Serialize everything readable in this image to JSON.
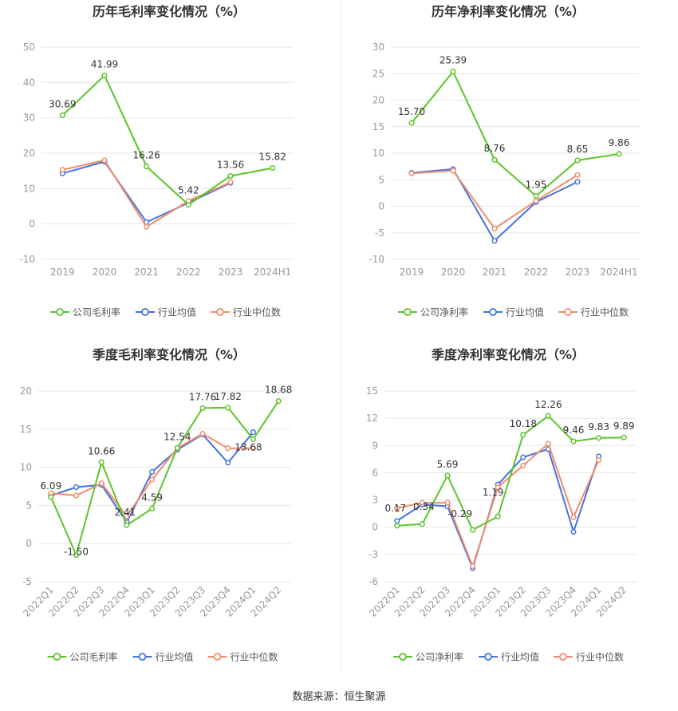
{
  "footer": {
    "source": "数据来源：恒生聚源"
  },
  "colors": {
    "company": "#5cc42a",
    "avg": "#4472e0",
    "median": "#f08c6a",
    "grid": "#e6e6e6",
    "axis_text": "#999999"
  },
  "chart_data": [
    {
      "type": "line",
      "title": "历年毛利率变化情况（%）",
      "categories": [
        "2019",
        "2020",
        "2021",
        "2022",
        "2023",
        "2024H1"
      ],
      "ylim": [
        -10,
        50
      ],
      "yticks": [
        -10,
        0,
        10,
        20,
        30,
        40,
        50
      ],
      "rotate_x": false,
      "grid": true,
      "legend_position": "bottom",
      "series": [
        {
          "name": "公司毛利率",
          "color": "#5cc42a",
          "values": [
            30.69,
            41.99,
            16.26,
            5.42,
            13.56,
            15.82
          ],
          "labels": [
            "30.69",
            "41.99",
            "16.26",
            "5.42",
            "13.56",
            "15.82"
          ]
        },
        {
          "name": "行业均值",
          "color": "#4472e0",
          "values": [
            14.3,
            17.6,
            0.5,
            6.0,
            11.6,
            null
          ]
        },
        {
          "name": "行业中位数",
          "color": "#f08c6a",
          "values": [
            15.3,
            18.0,
            -0.8,
            6.5,
            11.8,
            null
          ]
        }
      ]
    },
    {
      "type": "line",
      "title": "历年净利率变化情况（%）",
      "categories": [
        "2019",
        "2020",
        "2021",
        "2022",
        "2023",
        "2024H1"
      ],
      "ylim": [
        -10,
        30
      ],
      "yticks": [
        -10,
        -5,
        0,
        5,
        10,
        15,
        20,
        25,
        30
      ],
      "rotate_x": false,
      "grid": true,
      "legend_position": "bottom",
      "series": [
        {
          "name": "公司净利率",
          "color": "#5cc42a",
          "values": [
            15.7,
            25.39,
            8.76,
            1.95,
            8.65,
            9.86
          ],
          "labels": [
            "15.70",
            "25.39",
            "8.76",
            "1.95",
            "8.65",
            "9.86"
          ]
        },
        {
          "name": "行业均值",
          "color": "#4472e0",
          "values": [
            6.3,
            7.0,
            -6.5,
            0.8,
            4.6,
            null
          ]
        },
        {
          "name": "行业中位数",
          "color": "#f08c6a",
          "values": [
            6.2,
            6.7,
            -4.2,
            1.0,
            5.9,
            null
          ]
        }
      ]
    },
    {
      "type": "line",
      "title": "季度毛利率变化情况（%）",
      "categories": [
        "2022Q1",
        "2022Q2",
        "2022Q3",
        "2022Q4",
        "2023Q1",
        "2023Q2",
        "2023Q3",
        "2023Q4",
        "2024Q1",
        "2024Q2"
      ],
      "ylim": [
        -5,
        20
      ],
      "yticks": [
        -5,
        0,
        5,
        10,
        15,
        20
      ],
      "rotate_x": true,
      "grid": true,
      "legend_position": "bottom",
      "series": [
        {
          "name": "公司毛利率",
          "color": "#5cc42a",
          "values": [
            6.09,
            -1.5,
            10.66,
            2.41,
            4.59,
            12.54,
            17.76,
            17.82,
            13.68,
            18.68
          ],
          "labels": [
            "6.09",
            "-1.50",
            "10.66",
            "2.41",
            "4.59",
            "12.54",
            "17.76",
            "17.82",
            "13.68",
            "18.68"
          ]
        },
        {
          "name": "行业均值",
          "color": "#4472e0",
          "values": [
            6.3,
            7.4,
            7.7,
            2.8,
            9.4,
            12.3,
            14.3,
            10.6,
            14.6,
            null
          ]
        },
        {
          "name": "行业中位数",
          "color": "#f08c6a",
          "values": [
            6.6,
            6.3,
            7.9,
            3.6,
            8.4,
            12.5,
            14.4,
            12.5,
            12.5,
            null
          ]
        }
      ]
    },
    {
      "type": "line",
      "title": "季度净利率变化情况（%）",
      "categories": [
        "2022Q1",
        "2022Q2",
        "2022Q3",
        "2022Q4",
        "2023Q1",
        "2023Q2",
        "2023Q3",
        "2023Q4",
        "2024Q1",
        "2024Q2"
      ],
      "ylim": [
        -6,
        15
      ],
      "yticks": [
        -6,
        -3,
        0,
        3,
        6,
        9,
        12,
        15
      ],
      "rotate_x": true,
      "grid": true,
      "legend_position": "bottom",
      "series": [
        {
          "name": "公司净利率",
          "color": "#5cc42a",
          "values": [
            0.17,
            0.34,
            5.69,
            -0.29,
            1.19,
            10.18,
            12.26,
            9.46,
            9.83,
            9.89
          ],
          "labels": [
            "0.17",
            "0.34",
            "5.69",
            "-0.29",
            "1.19",
            "10.18",
            "12.26",
            "9.46",
            "9.83",
            "9.89"
          ]
        },
        {
          "name": "行业均值",
          "color": "#4472e0",
          "values": [
            0.7,
            2.5,
            2.3,
            -4.5,
            4.7,
            7.7,
            8.6,
            -0.5,
            7.8,
            null
          ]
        },
        {
          "name": "行业中位数",
          "color": "#f08c6a",
          "values": [
            2.1,
            2.7,
            2.7,
            -4.3,
            4.4,
            6.8,
            9.2,
            1.1,
            7.4,
            null
          ]
        }
      ]
    }
  ]
}
